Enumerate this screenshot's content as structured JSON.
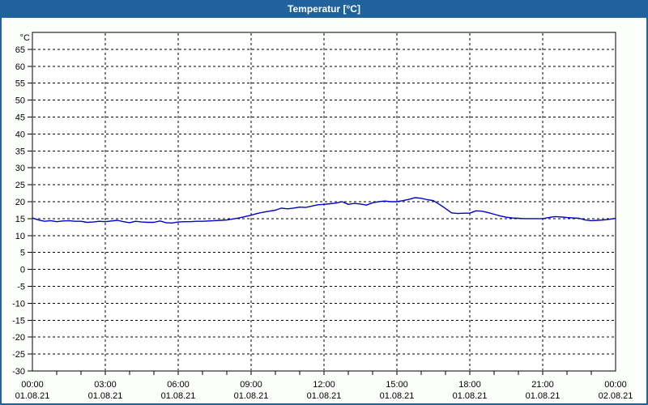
{
  "title": "Temperatur [°C]",
  "colors": {
    "titlebar_bg": "#20639c",
    "window_border": "#20639c",
    "window_bg": "#fdfffd",
    "plot_bg": "#ffffff",
    "grid": "#000000",
    "axis": "#000000",
    "line": "#0000c8",
    "title_text": "#ffffff"
  },
  "chart_data": {
    "type": "line",
    "title": "Temperatur [°C]",
    "y_unit_label": "°C",
    "ylim": [
      -30,
      70
    ],
    "y_ticks": [
      65,
      60,
      55,
      50,
      45,
      40,
      35,
      30,
      25,
      20,
      15,
      10,
      5,
      0,
      -5,
      -10,
      -15,
      -20,
      -25,
      -30
    ],
    "grid": "dashed",
    "legend": "none",
    "x_hours_range": [
      0,
      24
    ],
    "x_minor_tick_interval_hours": 1,
    "x_major_ticks": [
      {
        "hour": 0,
        "time": "00:00",
        "date": "01.08.21"
      },
      {
        "hour": 3,
        "time": "03:00",
        "date": "01.08.21"
      },
      {
        "hour": 6,
        "time": "06:00",
        "date": "01.08.21"
      },
      {
        "hour": 9,
        "time": "09:00",
        "date": "01.08.21"
      },
      {
        "hour": 12,
        "time": "12:00",
        "date": "01.08.21"
      },
      {
        "hour": 15,
        "time": "15:00",
        "date": "01.08.21"
      },
      {
        "hour": 18,
        "time": "18:00",
        "date": "01.08.21"
      },
      {
        "hour": 21,
        "time": "21:00",
        "date": "01.08.21"
      },
      {
        "hour": 24,
        "time": "00:00",
        "date": "02.08.21"
      }
    ],
    "series": [
      {
        "name": "Temperatur",
        "color": "#0000c8",
        "x_start_hour": 0,
        "x_step_hours": 0.25,
        "values": [
          15.2,
          14.6,
          14.2,
          14.4,
          14.1,
          14.3,
          14.4,
          14.2,
          14.2,
          13.9,
          14.0,
          14.2,
          14.1,
          14.3,
          14.5,
          14.1,
          13.8,
          14.2,
          14.0,
          13.9,
          13.9,
          14.3,
          13.8,
          13.7,
          14.0,
          14.1,
          14.1,
          14.2,
          14.2,
          14.3,
          14.4,
          14.5,
          14.6,
          14.9,
          15.2,
          15.6,
          16.0,
          16.5,
          16.9,
          17.2,
          17.5,
          18.1,
          17.9,
          18.1,
          18.4,
          18.3,
          18.7,
          19.1,
          19.2,
          19.4,
          19.6,
          20.0,
          19.2,
          19.5,
          19.3,
          19.0,
          19.7,
          20.0,
          20.2,
          20.0,
          20.0,
          20.3,
          20.7,
          21.2,
          21.0,
          20.6,
          20.3,
          19.2,
          18.0,
          16.7,
          16.5,
          16.6,
          16.6,
          17.3,
          17.2,
          16.8,
          16.3,
          15.8,
          15.4,
          15.2,
          15.1,
          15.0,
          15.0,
          15.0,
          15.0,
          15.3,
          15.6,
          15.5,
          15.3,
          15.2,
          15.1,
          14.6,
          14.4,
          14.5,
          14.6,
          14.8,
          15.1
        ]
      }
    ]
  }
}
